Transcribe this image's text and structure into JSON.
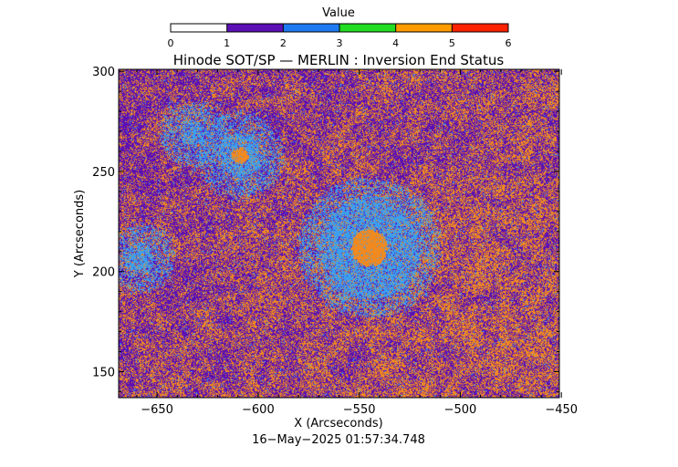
{
  "chart_data": {
    "type": "heatmap",
    "title": "Hinode SOT/SP — MERLIN : Inversion End Status",
    "xlabel": "X (Arcseconds)",
    "ylabel": "Y (Arcseconds)",
    "xlim": [
      -669,
      -451
    ],
    "ylim": [
      137,
      301
    ],
    "x_ticks": [
      -650,
      -600,
      -550,
      -500,
      -450
    ],
    "y_ticks": [
      150,
      200,
      250,
      300
    ],
    "x_tick_labels": [
      "−650",
      "−600",
      "−550",
      "−500",
      "−450"
    ],
    "y_tick_labels": [
      "150",
      "200",
      "250",
      "300"
    ],
    "timestamp": "16−May−2025 01:57:34.748",
    "colorbar": {
      "label": "Value",
      "ticks": [
        0,
        1,
        2,
        3,
        4,
        5,
        6
      ],
      "tick_labels": [
        "0",
        "1",
        "2",
        "3",
        "4",
        "5",
        "6"
      ],
      "bins": [
        {
          "from": 0,
          "to": 1,
          "color": "#ffffff"
        },
        {
          "from": 1,
          "to": 2,
          "color": "#5b0fb4"
        },
        {
          "from": 2,
          "to": 3,
          "color": "#1e7af0"
        },
        {
          "from": 3,
          "to": 4,
          "color": "#22dd22"
        },
        {
          "from": 4,
          "to": 5,
          "color": "#ff9a00"
        },
        {
          "from": 5,
          "to": 6,
          "color": "#ff2200"
        }
      ]
    },
    "status_colors": {
      "1": "#5b0fb4",
      "2": "#3a9ff0",
      "4": "#f08a20"
    },
    "features": [
      {
        "name": "sunspot",
        "x": -545,
        "y": 212,
        "umbra_radius": 9,
        "penumbra_radius": 25,
        "status_umbra": 4,
        "status_penumbra": 2
      },
      {
        "name": "pore",
        "x": -609,
        "y": 258,
        "umbra_radius": 4,
        "penumbra_radius": 11,
        "status_umbra": 4,
        "status_penumbra": 2
      },
      {
        "name": "pore",
        "x": -632,
        "y": 269,
        "umbra_radius": 0,
        "penumbra_radius": 6,
        "status_umbra": 2,
        "status_penumbra": 2
      },
      {
        "name": "pore",
        "x": -659,
        "y": 207,
        "umbra_radius": 0,
        "penumbra_radius": 7,
        "status_umbra": 2,
        "status_penumbra": 2
      }
    ],
    "background_fraction_status4": 0.45
  }
}
